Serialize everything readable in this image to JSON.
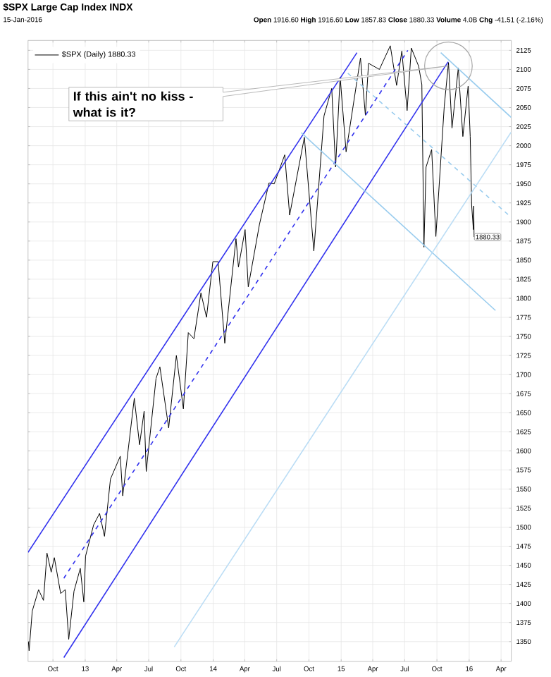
{
  "chart_data": {
    "type": "line",
    "title": "$SPX Large Cap Index INDX",
    "subtitle": "15-Jan-2016",
    "annotations": [
      "**Open** 1916.60  **High** 1916.60  **Low** 1857.83  **Close** 1880.33  **Volume** 4.0B  **Chg** -41.51 (-2.16%)",
      "If this ain't no kiss - what is it?"
    ],
    "xlim": [
      "2012-07-22",
      "2016-04-30"
    ],
    "ylim": [
      1324,
      2138
    ],
    "xticks": [
      {
        "value": "2012-10-01",
        "label": "Oct"
      },
      {
        "value": "2013-01-01",
        "label": "13"
      },
      {
        "value": "2013-04-01",
        "label": "Apr"
      },
      {
        "value": "2013-07-01",
        "label": "Jul"
      },
      {
        "value": "2013-10-01",
        "label": "Oct"
      },
      {
        "value": "2014-01-01",
        "label": "14"
      },
      {
        "value": "2014-04-01",
        "label": "Apr"
      },
      {
        "value": "2014-07-01",
        "label": "Jul"
      },
      {
        "value": "2014-10-01",
        "label": "Oct"
      },
      {
        "value": "2015-01-01",
        "label": "15"
      },
      {
        "value": "2015-04-01",
        "label": "Apr"
      },
      {
        "value": "2015-07-01",
        "label": "Jul"
      },
      {
        "value": "2015-10-01",
        "label": "Oct"
      },
      {
        "value": "2016-01-01",
        "label": "16"
      },
      {
        "value": "2016-04-01",
        "label": "Apr"
      }
    ],
    "yticks": [
      1350,
      1375,
      1400,
      1425,
      1450,
      1475,
      1500,
      1525,
      1550,
      1575,
      1600,
      1625,
      1650,
      1675,
      1700,
      1725,
      1750,
      1775,
      1800,
      1825,
      1850,
      1875,
      1900,
      1925,
      1950,
      1975,
      2000,
      2025,
      2050,
      2075,
      2100,
      2125
    ],
    "grid": true,
    "legend": "top left",
    "marker": "none",
    "series": [
      {
        "name": "$SPX (Daily) 1880.33",
        "color": "#000000",
        "x": [
          "2012-07-23",
          "2012-07-25",
          "2012-08-03",
          "2012-08-21",
          "2012-09-04",
          "2012-09-14",
          "2012-09-26",
          "2012-10-05",
          "2012-10-23",
          "2012-11-05",
          "2012-11-15",
          "2012-11-30",
          "2012-12-18",
          "2012-12-28",
          "2013-01-02",
          "2013-01-25",
          "2013-02-11",
          "2013-02-25",
          "2013-03-14",
          "2013-04-11",
          "2013-04-18",
          "2013-05-21",
          "2013-06-05",
          "2013-06-18",
          "2013-06-24",
          "2013-07-22",
          "2013-08-02",
          "2013-08-27",
          "2013-09-18",
          "2013-10-08",
          "2013-10-22",
          "2013-11-07",
          "2013-11-27",
          "2013-12-13",
          "2013-12-31",
          "2014-01-15",
          "2014-02-03",
          "2014-03-07",
          "2014-03-14",
          "2014-04-02",
          "2014-04-11",
          "2014-05-13",
          "2014-06-09",
          "2014-06-24",
          "2014-07-24",
          "2014-08-07",
          "2014-09-18",
          "2014-10-15",
          "2014-11-13",
          "2014-12-05",
          "2014-12-16",
          "2014-12-29",
          "2015-01-15",
          "2015-02-25",
          "2015-03-11",
          "2015-03-20",
          "2015-04-20",
          "2015-05-21",
          "2015-06-08",
          "2015-06-23",
          "2015-07-08",
          "2015-07-20",
          "2015-08-10",
          "2015-08-19",
          "2015-08-25",
          "2015-08-31",
          "2015-09-16",
          "2015-09-28",
          "2015-10-22",
          "2015-11-03",
          "2015-11-13",
          "2015-12-01",
          "2015-12-14",
          "2015-12-29",
          "2016-01-04",
          "2016-01-08",
          "2016-01-13",
          "2016-01-14",
          "2016-01-15"
        ],
        "values": [
          1350,
          1338,
          1390,
          1418,
          1404,
          1466,
          1441,
          1460,
          1413,
          1418,
          1353,
          1416,
          1446,
          1402,
          1462,
          1503,
          1518,
          1488,
          1563,
          1593,
          1541,
          1669,
          1608,
          1652,
          1573,
          1695,
          1710,
          1630,
          1725,
          1655,
          1755,
          1747,
          1807,
          1775,
          1848,
          1848,
          1741,
          1878,
          1841,
          1890,
          1815,
          1897,
          1951,
          1950,
          1988,
          1909,
          2011,
          1862,
          2039,
          2075,
          1972,
          2090,
          1992,
          2115,
          2040,
          2108,
          2100,
          2131,
          2079,
          2124,
          2046,
          2128,
          2104,
          2080,
          1867,
          1972,
          1995,
          1881,
          2052,
          2109,
          2023,
          2102,
          2012,
          2078,
          2012,
          1922,
          1890,
          1921,
          1880.33
        ],
        "value_labels": [
          null,
          null,
          null,
          null,
          null,
          null,
          null,
          null,
          null,
          null,
          null,
          null,
          null,
          null,
          null,
          null,
          null,
          null,
          null,
          null,
          null,
          null,
          null,
          null,
          null,
          null,
          null,
          null,
          null,
          null,
          null,
          null,
          null,
          null,
          null,
          null,
          null,
          null,
          null,
          null,
          null,
          null,
          null,
          null,
          null,
          null,
          null,
          null,
          null,
          null,
          null,
          null,
          null,
          null,
          null,
          null,
          null,
          null,
          null,
          null,
          null,
          null,
          null,
          null,
          null,
          null,
          null,
          null,
          null,
          null,
          null,
          null,
          null,
          null,
          null,
          null,
          null,
          null,
          "1880.33"
        ]
      },
      {
        "color": "#3333ee",
        "x": [
          "2012-07-22",
          "2015-02-15"
        ],
        "values": [
          1467,
          2122
        ]
      },
      {
        "color": "#3333ee",
        "x": [
          "2012-11-01",
          "2015-11-02"
        ],
        "values": [
          1329,
          2110
        ]
      },
      {
        "color": "#3333ee",
        "line_style": "dashed",
        "x": [
          "2012-11-01",
          "2015-07-10"
        ],
        "values": [
          1433,
          2125
        ]
      },
      {
        "color": "#99ccee",
        "x": [
          "2014-09-09",
          "2016-03-16"
        ],
        "values": [
          2017,
          1784
        ]
      },
      {
        "color": "#99ccee",
        "x": [
          "2015-10-12",
          "2016-04-30"
        ],
        "values": [
          2122,
          2037
        ]
      },
      {
        "color": "#99ccee",
        "line_style": "dashed",
        "x": [
          "2015-01-20",
          "2016-04-30"
        ],
        "values": [
          2095,
          1906
        ]
      },
      {
        "color": "#bbddf5",
        "x": [
          "2013-09-12",
          "2016-04-30"
        ],
        "values": [
          1343,
          2018
        ]
      }
    ]
  }
}
